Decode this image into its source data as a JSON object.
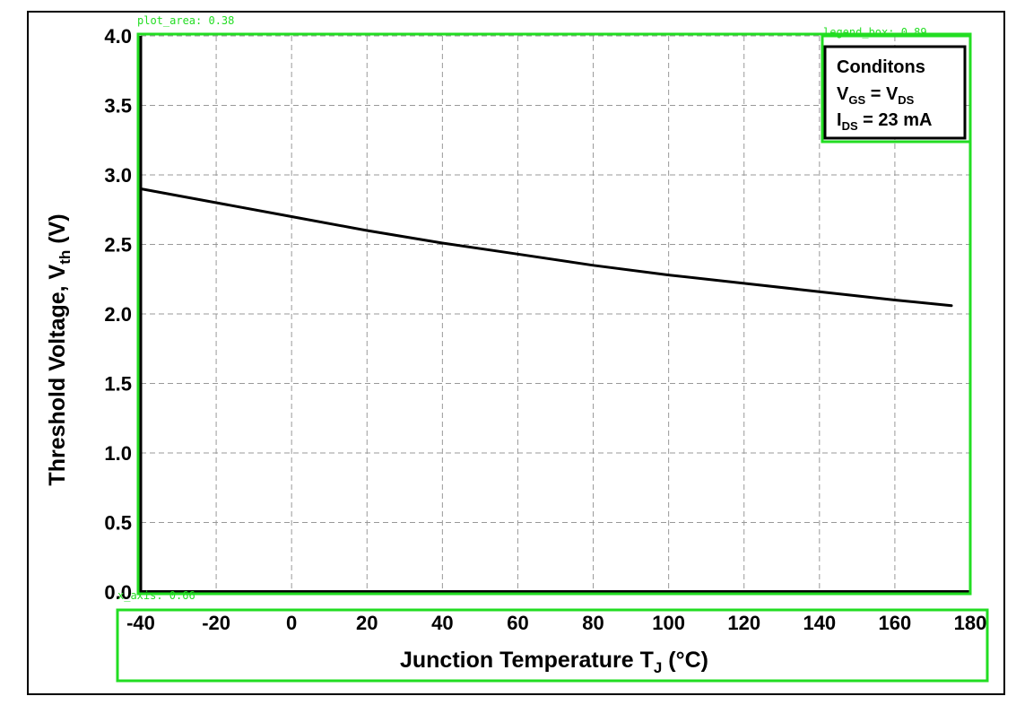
{
  "chart_data": {
    "type": "line",
    "title": "",
    "xlabel": "Junction Temperature T",
    "xlabel_sub": "J",
    "xlabel_unit": " (°C)",
    "ylabel": "Threshold Voltage, V",
    "ylabel_sub": "th",
    "ylabel_unit": " (V)",
    "xlim": [
      -40,
      180
    ],
    "ylim": [
      0.0,
      4.0
    ],
    "xticks": [
      "-40",
      "-20",
      "0",
      "20",
      "40",
      "60",
      "80",
      "100",
      "120",
      "140",
      "160",
      "180"
    ],
    "yticks": [
      "0.0",
      "0.5",
      "1.0",
      "1.5",
      "2.0",
      "2.5",
      "3.0",
      "3.5",
      "4.0"
    ],
    "grid": true,
    "legend_position": "top-right",
    "legend": {
      "title": "Conditons",
      "line1": {
        "a": "V",
        "a_sub": "GS",
        "eq": " = ",
        "b": "V",
        "b_sub": "DS"
      },
      "line2": {
        "a": "I",
        "a_sub": "DS",
        "rest": " = 23 mA"
      }
    },
    "series": [
      {
        "name": "Vth",
        "color": "#000000",
        "x": [
          -40,
          -20,
          0,
          20,
          40,
          60,
          80,
          100,
          120,
          140,
          160,
          175
        ],
        "y": [
          2.9,
          2.8,
          2.7,
          2.6,
          2.51,
          2.43,
          2.35,
          2.28,
          2.22,
          2.16,
          2.1,
          2.06
        ]
      }
    ]
  },
  "annotations": {
    "plot_area": "plot_area: 0.38",
    "legend_box": "legend_box: 0.89",
    "x_axis": "x_axis: 0.66"
  },
  "colors": {
    "overlay": "#22dd22",
    "grid": "#999999",
    "line": "#000000"
  }
}
